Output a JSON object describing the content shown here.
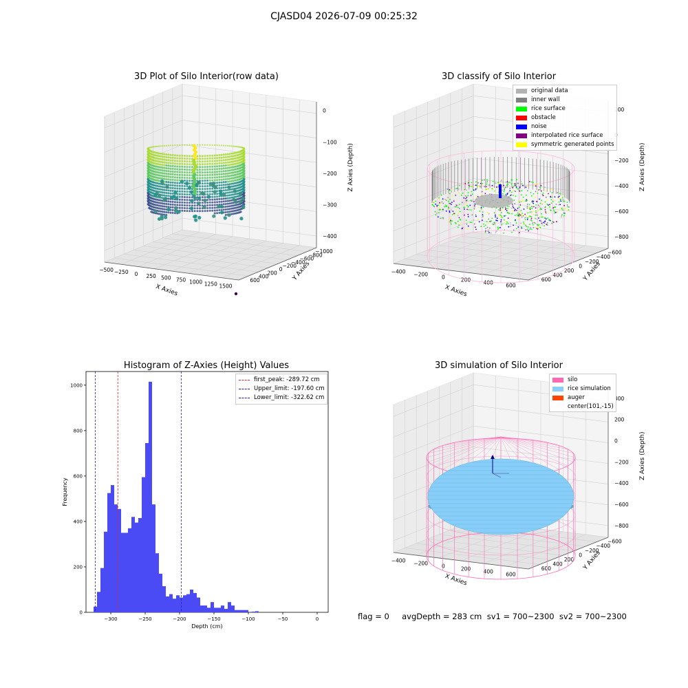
{
  "figure_title": "CJASD04 2026-07-09 00:25:32",
  "status_text": "flag = 0     avgDepth = 283 cm  sv1 = 700~2300  sv2 = 700~2300",
  "colors": {
    "hist_bar": "#4b4bf5",
    "peak_line": "#d62728",
    "limit_line": "#1f1fb4",
    "silo": "#ff69b4",
    "rice": "#87cefa",
    "auger": "#ff4500",
    "original": "#b3b3b3",
    "inner_wall": "#808080",
    "rice_surface": "#00ff00",
    "obstacle": "#ff0000",
    "noise": "#0000ff",
    "interp": "#800080",
    "sym": "#ffff00"
  },
  "chart_data": [
    {
      "type": "scatter",
      "title": "3D Plot of Silo Interior(row data)",
      "xlabel": "X Axies",
      "ylabel": "Y Axies",
      "zlabel": "Z Axies (Depth)",
      "x_ticks": [
        "−500",
        "−250",
        "0",
        "250",
        "500",
        "750",
        "1000",
        "1250",
        "1500"
      ],
      "y_ticks": [
        "−1000",
        "−800",
        "−600",
        "−400",
        "−200",
        "0",
        "200",
        "400",
        "600"
      ],
      "z_ticks": [
        "0",
        "−100",
        "−200",
        "−300",
        "−400"
      ],
      "colormap": "viridis"
    },
    {
      "type": "scatter",
      "title": "3D classify of Silo Interior",
      "xlabel": "X Axies",
      "ylabel": "Y Axies",
      "zlabel": "Z Axies (Depth)",
      "x_ticks": [
        "−400",
        "−200",
        "0",
        "200",
        "400",
        "600"
      ],
      "y_ticks": [
        "−600",
        "−400",
        "−200",
        "0",
        "200",
        "400",
        "600"
      ],
      "z_ticks": [
        "200",
        "0",
        "−200",
        "−400",
        "−600",
        "−800"
      ],
      "legend": [
        "original data",
        "inner wall",
        "rice surface",
        "obstacle",
        "noise",
        "interpolated rice surface",
        "symmetric generated points"
      ],
      "legend_position": "top-right"
    },
    {
      "type": "bar",
      "title": "Histogram of Z-Axies (Height) Values",
      "xlabel": "Depth (cm)",
      "ylabel": "Frequency",
      "x_ticks": [
        "−300",
        "−250",
        "−200",
        "−150",
        "−100",
        "−50",
        "0"
      ],
      "y_ticks": [
        "0",
        "200",
        "400",
        "600",
        "800",
        "1000"
      ],
      "xlim": [
        -336,
        16
      ],
      "ylim": [
        0,
        1060
      ],
      "bin_start": -325,
      "bin_width": 5,
      "values": [
        25,
        90,
        195,
        355,
        525,
        560,
        475,
        455,
        350,
        350,
        370,
        420,
        395,
        415,
        595,
        745,
        1015,
        475,
        260,
        170,
        115,
        70,
        80,
        60,
        75,
        65,
        75,
        80,
        100,
        85,
        65,
        30,
        30,
        20,
        45,
        20,
        20,
        30,
        15,
        45,
        30,
        10,
        10,
        10,
        10,
        2,
        3,
        5
      ],
      "vlines": [
        {
          "label": "first_peak: -289.72 cm",
          "x": -289.72,
          "color": "red"
        },
        {
          "label": "Upper_limit: -197.60 cm",
          "x": -197.6,
          "color": "blue"
        },
        {
          "label": "Lower_limit: -322.62 cm",
          "x": -322.62,
          "color": "blue"
        }
      ],
      "legend_position": "top-right"
    },
    {
      "type": "scatter",
      "title": "3D simulation of Silo Interior",
      "xlabel": "X Axies",
      "ylabel": "Y Axies",
      "zlabel": "Z Axies (Depth)",
      "x_ticks": [
        "−400",
        "−200",
        "0",
        "200",
        "400",
        "600"
      ],
      "y_ticks": [
        "−600",
        "−400",
        "−200",
        "0",
        "200",
        "400",
        "600"
      ],
      "z_ticks": [
        "400",
        "200",
        "0",
        "−200",
        "−400",
        "−600",
        "−800"
      ],
      "legend": [
        "silo",
        "rice simulation",
        "auger",
        "center(101,-15)"
      ],
      "legend_position": "top-right"
    }
  ]
}
